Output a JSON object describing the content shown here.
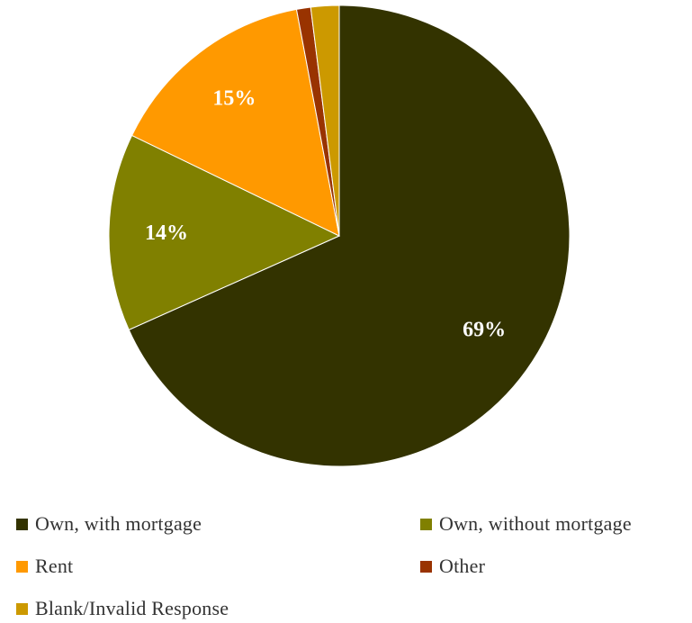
{
  "chart_data": {
    "type": "pie",
    "title": "",
    "start_angle_deg": 0,
    "direction": "clockwise",
    "legend_position": "bottom",
    "slices": [
      {
        "name": "Own, with mortgage",
        "value": 69,
        "label": "69%",
        "color": "#333300"
      },
      {
        "name": "Own, without mortgage",
        "value": 14,
        "label": "14%",
        "color": "#808000"
      },
      {
        "name": "Rent",
        "value": 15,
        "label": "15%",
        "color": "#FF9900"
      },
      {
        "name": "Other",
        "value": 1,
        "label": "",
        "color": "#993300"
      },
      {
        "name": "Blank/Invalid Response",
        "value": 2,
        "label": "",
        "color": "#CC9900"
      }
    ]
  }
}
